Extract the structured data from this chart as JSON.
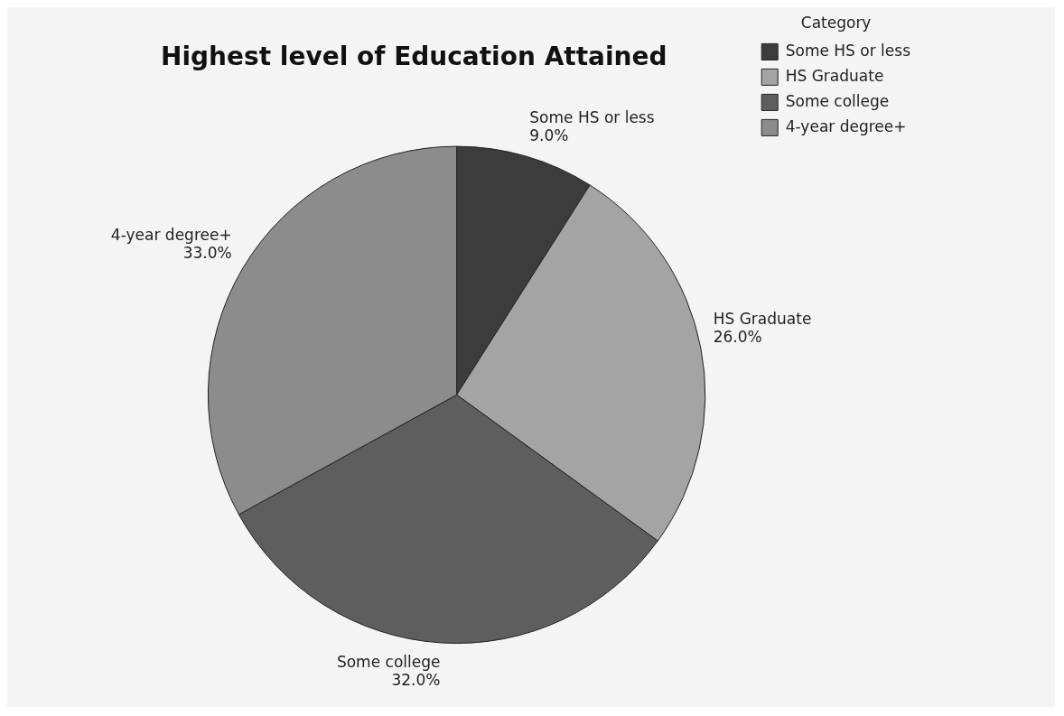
{
  "chart_data": {
    "type": "pie",
    "title": "Highest level of Education Attained",
    "legend_title": "Category",
    "categories": [
      "Some HS or less",
      "HS Graduate",
      "Some college",
      "4-year degree+"
    ],
    "values": [
      9,
      26,
      32,
      33
    ],
    "value_labels": [
      "9.0%",
      "26.0%",
      "32.0%",
      "33.0%"
    ],
    "colors": [
      "#3c3c3c",
      "#a4a4a4",
      "#5e5e5e",
      "#8c8c8c"
    ],
    "legend": "top right"
  }
}
